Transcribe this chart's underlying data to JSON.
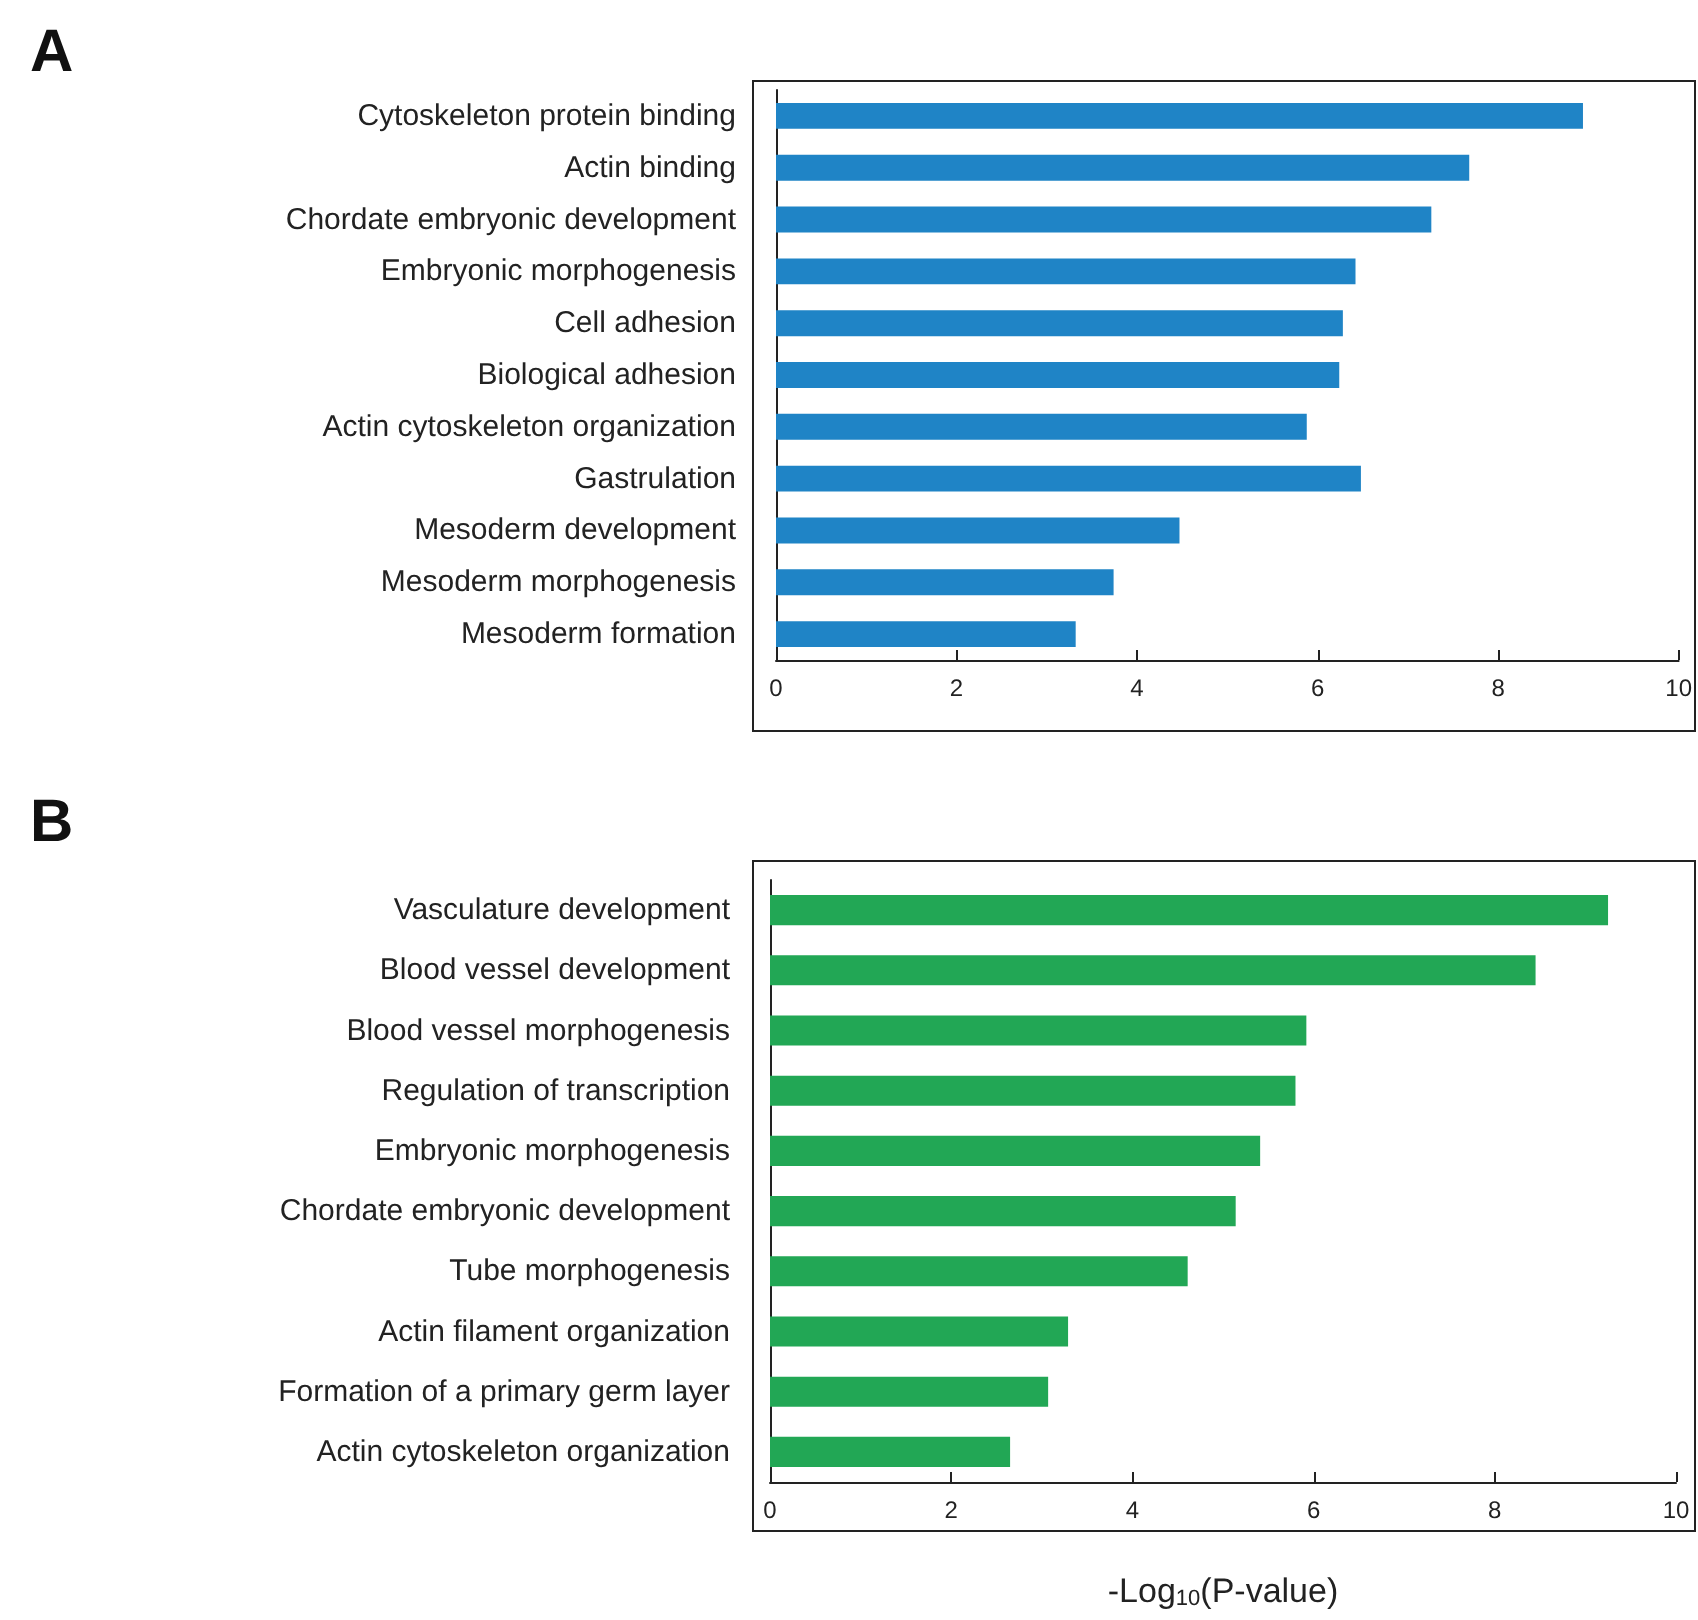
{
  "chart_data": [
    {
      "type": "bar",
      "title": "A",
      "orientation": "horizontal",
      "color": "#1f84c6",
      "categories": [
        "Cytoskeleton protein binding",
        "Actin binding",
        "Chordate embryonic development",
        "Embryonic morphogenesis",
        "Cell adhesion",
        "Biological adhesion",
        "Actin cytoskeleton organization",
        "Gastrulation",
        "Mesoderm development",
        "Mesoderm morphogenesis",
        "Mesoderm formation"
      ],
      "values": [
        8.94,
        7.68,
        7.26,
        6.42,
        6.28,
        6.24,
        5.88,
        6.48,
        4.47,
        3.74,
        3.32
      ],
      "xlim": [
        0,
        10
      ],
      "xticks": [
        0,
        2,
        4,
        6,
        8,
        10
      ]
    },
    {
      "type": "bar",
      "title": "B",
      "orientation": "horizontal",
      "color": "#22a755",
      "xlabel": "-Log$_{10}$(P-value)",
      "categories": [
        "Vasculature development",
        "Blood vessel development",
        "Blood vessel morphogenesis",
        "Regulation of transcription",
        "Embryonic morphogenesis",
        "Chordate embryonic development",
        "Tube morphogenesis",
        "Actin filament organization",
        "Formation of a primary germ layer",
        "Actin cytoskeleton organization"
      ],
      "values": [
        9.25,
        8.45,
        5.92,
        5.8,
        5.41,
        5.14,
        4.61,
        3.29,
        3.07,
        2.65
      ],
      "xlim": [
        0,
        10
      ],
      "xticks": [
        0,
        2,
        4,
        6,
        8,
        10
      ]
    }
  ]
}
